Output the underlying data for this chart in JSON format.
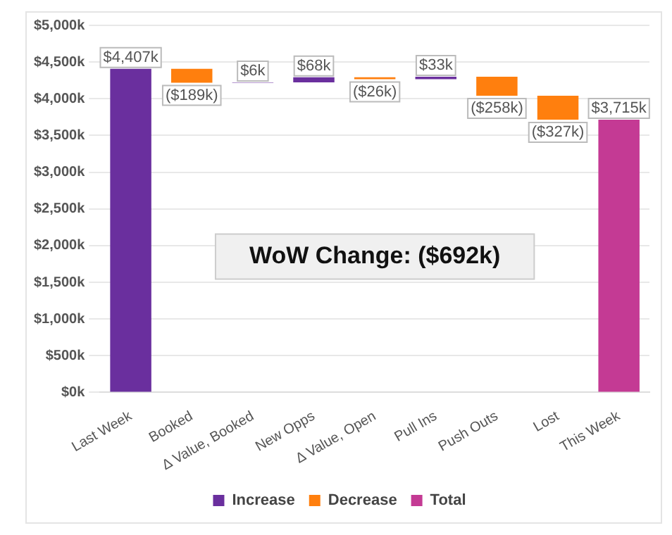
{
  "chart_data": {
    "type": "bar",
    "categories": [
      "Last Week",
      "Booked",
      "Δ Value, Booked",
      "New Opps",
      "Δ Value, Open",
      "Pull Ins",
      "Push Outs",
      "Lost",
      "This Week"
    ],
    "series": [
      {
        "name": "Increase",
        "color": "#6a2f9e",
        "base": [
          0,
          null,
          4218,
          4224,
          null,
          4266,
          null,
          null,
          null
        ],
        "values": [
          4407,
          null,
          6,
          68,
          null,
          33,
          null,
          null,
          null
        ],
        "value_labels": [
          "$4,407k",
          null,
          "$6k",
          "$68k",
          null,
          "$33k",
          null,
          null,
          null
        ]
      },
      {
        "name": "Decrease",
        "color": "#ff7f0e",
        "base": [
          null,
          4407,
          null,
          null,
          4292,
          null,
          4299,
          4041,
          null
        ],
        "values": [
          null,
          -189,
          null,
          null,
          -26,
          null,
          -258,
          -327,
          null
        ],
        "value_labels": [
          null,
          "($189k)",
          null,
          null,
          "($26k)",
          null,
          "($258k)",
          "($327k)",
          null
        ]
      },
      {
        "name": "Total",
        "color": "#c43a94",
        "base": [
          null,
          null,
          null,
          null,
          null,
          null,
          null,
          null,
          0
        ],
        "values": [
          null,
          null,
          null,
          null,
          null,
          null,
          null,
          null,
          3715
        ],
        "value_labels": [
          null,
          null,
          null,
          null,
          null,
          null,
          null,
          null,
          "$3,715k"
        ]
      }
    ],
    "ylim": [
      0,
      5000
    ],
    "yticks": [
      {
        "value": 0,
        "label": "$0k"
      },
      {
        "value": 500,
        "label": "$500k"
      },
      {
        "value": 1000,
        "label": "$1,000k"
      },
      {
        "value": 1500,
        "label": "$1,500k"
      },
      {
        "value": 2000,
        "label": "$2,000k"
      },
      {
        "value": 2500,
        "label": "$2,500k"
      },
      {
        "value": 3000,
        "label": "$3,000k"
      },
      {
        "value": 3500,
        "label": "$3,500k"
      },
      {
        "value": 4000,
        "label": "$4,000k"
      },
      {
        "value": 4500,
        "label": "$4,500k"
      },
      {
        "value": 5000,
        "label": "$5,000k"
      }
    ],
    "grid": "y",
    "legend": "bottom",
    "annotations": [
      "WoW Change: ($692k)"
    ]
  }
}
